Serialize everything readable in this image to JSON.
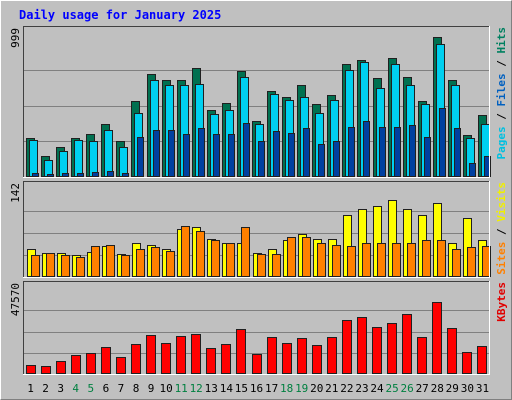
{
  "chart_data": {
    "type": "bar",
    "title": "Daily usage for January 2025",
    "title_color": "#0000ff",
    "categories": [
      "1",
      "2",
      "3",
      "4",
      "5",
      "6",
      "7",
      "8",
      "9",
      "10",
      "11",
      "12",
      "13",
      "14",
      "15",
      "16",
      "17",
      "18",
      "19",
      "20",
      "21",
      "22",
      "23",
      "24",
      "25",
      "26",
      "27",
      "28",
      "29",
      "30",
      "31"
    ],
    "weekend_days": [
      "4",
      "5",
      "11",
      "12",
      "18",
      "19",
      "25",
      "26"
    ],
    "weekday_color": "#000000",
    "weekend_color": "#008040",
    "grid": true,
    "panels": [
      {
        "name": "hits",
        "ymax_label": "999",
        "ylim": [
          0,
          999
        ],
        "legend": [
          {
            "text": "Pages",
            "color": "#00c0e0"
          },
          {
            "text": " / ",
            "color": "#000000"
          },
          {
            "text": "Files",
            "color": "#0060c0"
          },
          {
            "text": " / ",
            "color": "#000000"
          },
          {
            "text": "Hits",
            "color": "#008060"
          }
        ],
        "series": [
          {
            "name": "Hits",
            "color": "#007050",
            "values": [
              270,
              150,
              210,
              270,
              300,
              370,
              250,
              530,
              720,
              680,
              680,
              760,
              470,
              520,
              740,
              390,
              600,
              560,
              640,
              510,
              570,
              790,
              820,
              690,
              830,
              700,
              530,
              980,
              680,
              290,
              430
            ]
          },
          {
            "name": "Files",
            "color": "#00d0f0",
            "values": [
              255,
              120,
              180,
              255,
              250,
              330,
              210,
              450,
              680,
              640,
              640,
              650,
              440,
              470,
              700,
              370,
              580,
              540,
              560,
              450,
              540,
              750,
              800,
              620,
              790,
              640,
              510,
              930,
              640,
              270,
              370
            ]
          },
          {
            "name": "Pages",
            "color": "#0040a0",
            "values": [
              30,
              20,
              25,
              30,
              35,
              40,
              30,
              280,
              330,
              330,
              300,
              340,
              300,
              300,
              380,
              250,
              320,
              310,
              340,
              230,
              250,
              350,
              390,
              350,
              350,
              360,
              280,
              480,
              340,
              100,
              150
            ]
          }
        ]
      },
      {
        "name": "visits",
        "ymax_label": "142",
        "ylim": [
          0,
          142
        ],
        "legend": [
          {
            "text": "Sites",
            "color": "#ff8000"
          },
          {
            "text": " / ",
            "color": "#000000"
          },
          {
            "text": "Visits",
            "color": "#f0f000"
          }
        ],
        "series": [
          {
            "name": "Visits",
            "color": "#ffff00",
            "values": [
              45,
              38,
              38,
              35,
              40,
              50,
              37,
              55,
              52,
              45,
              78,
              80,
              62,
              55,
              55,
              38,
              45,
              60,
              70,
              62,
              62,
              100,
              110,
              115,
              125,
              110,
              100,
              120,
              55,
              95,
              60
            ]
          },
          {
            "name": "Sites",
            "color": "#ff8000",
            "values": [
              35,
              38,
              35,
              32,
              50,
              52,
              35,
              45,
              48,
              42,
              82,
              75,
              60,
              55,
              80,
              37,
              37,
              65,
              65,
              55,
              52,
              50,
              55,
              55,
              55,
              55,
              60,
              60,
              45,
              48,
              50
            ]
          }
        ]
      },
      {
        "name": "kbytes",
        "ymax_label": "47570",
        "ylim": [
          0,
          47570
        ],
        "legend": [
          {
            "text": "KBytes",
            "color": "#e00000"
          }
        ],
        "series": [
          {
            "name": "KBytes",
            "color": "#ff0000",
            "values": [
              5000,
              4500,
              7200,
              10500,
              11700,
              15200,
              9600,
              16600,
              21800,
              17300,
              21100,
              22600,
              14500,
              16600,
              25200,
              11200,
              20500,
              17600,
              19900,
              16000,
              20900,
              30200,
              31800,
              26400,
              28400,
              33300,
              20900,
              40100,
              25700,
              12500,
              15800
            ]
          }
        ]
      }
    ]
  }
}
